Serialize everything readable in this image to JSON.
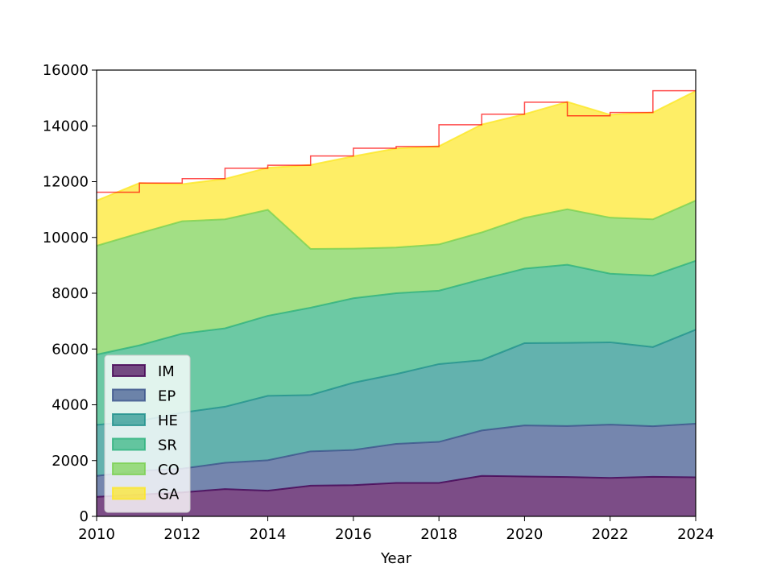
{
  "chart_data": {
    "type": "area",
    "stacked": true,
    "title": "",
    "xlabel": "Year",
    "ylabel": "",
    "x": [
      2010,
      2011,
      2012,
      2013,
      2014,
      2015,
      2016,
      2017,
      2018,
      2019,
      2020,
      2021,
      2022,
      2023,
      2024
    ],
    "xlim": [
      2010,
      2024
    ],
    "ylim": [
      0,
      16000
    ],
    "xticks": [
      "2010",
      "2012",
      "2014",
      "2016",
      "2018",
      "2020",
      "2022",
      "2024"
    ],
    "yticks": [
      "0",
      "2000",
      "4000",
      "6000",
      "8000",
      "10000",
      "12000",
      "14000",
      "16000"
    ],
    "grid": false,
    "legend_position": "lower-left",
    "series": [
      {
        "name": "IM",
        "color": "#440154",
        "values": [
          700,
          780,
          860,
          980,
          920,
          1100,
          1120,
          1200,
          1200,
          1450,
          1430,
          1410,
          1380,
          1420,
          1400
        ]
      },
      {
        "name": "EP",
        "color": "#3b528b",
        "values": [
          750,
          850,
          850,
          940,
          1090,
          1230,
          1260,
          1400,
          1470,
          1630,
          1830,
          1830,
          1910,
          1810,
          1920
        ]
      },
      {
        "name": "HE",
        "color": "#21918c",
        "values": [
          1830,
          1790,
          2010,
          2010,
          2310,
          2020,
          2410,
          2500,
          2790,
          2520,
          2950,
          2980,
          2950,
          2840,
          3370
        ]
      },
      {
        "name": "SR",
        "color": "#2db27d",
        "values": [
          2520,
          2710,
          2830,
          2810,
          2870,
          3130,
          3030,
          2900,
          2630,
          2900,
          2670,
          2800,
          2460,
          2560,
          2470
        ]
      },
      {
        "name": "CO",
        "color": "#7ad151",
        "values": [
          3900,
          4020,
          4030,
          3910,
          3800,
          2110,
          1780,
          1640,
          1660,
          1680,
          1820,
          1990,
          2010,
          2020,
          2160
        ]
      },
      {
        "name": "GA",
        "color": "#fde725",
        "values": [
          1620,
          1800,
          1330,
          1450,
          1510,
          3010,
          3310,
          3550,
          3520,
          3870,
          3720,
          3850,
          3690,
          3830,
          3930
        ]
      }
    ],
    "step_line": {
      "color": "#ff0000",
      "values": [
        11620,
        11950,
        12110,
        12480,
        12590,
        12920,
        13200,
        13260,
        14040,
        14420,
        14850,
        14360,
        14480,
        15260,
        15260
      ]
    }
  }
}
